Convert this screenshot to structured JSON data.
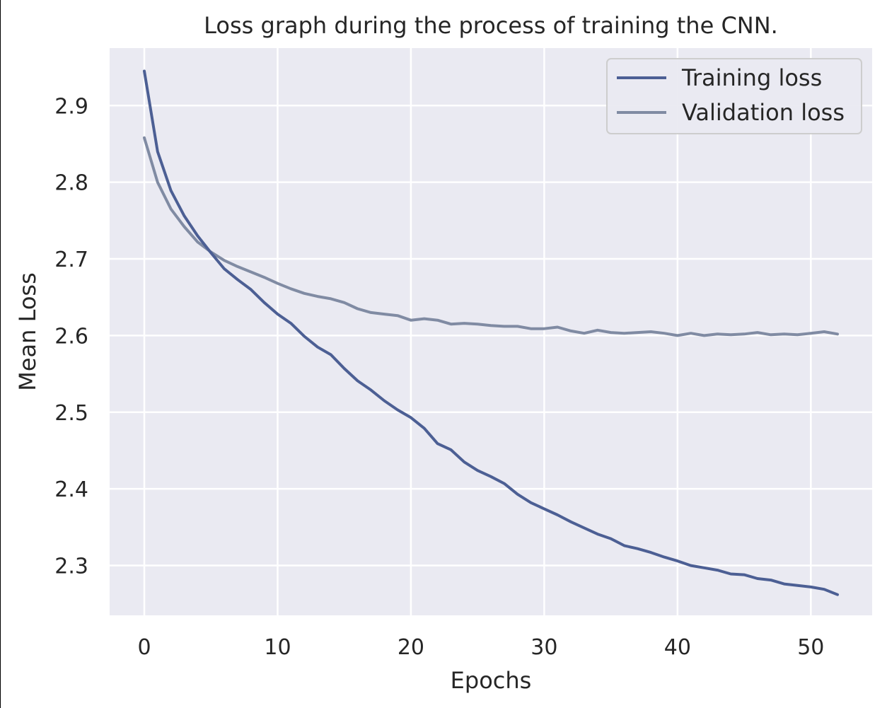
{
  "chart_data": {
    "type": "line",
    "title": "Loss graph during the process of training the CNN.",
    "xlabel": "Epochs",
    "ylabel": "Mean Loss",
    "xlim": [
      -2.6,
      54.6
    ],
    "ylim": [
      2.235,
      2.975
    ],
    "xticks": [
      0,
      10,
      20,
      30,
      40,
      50
    ],
    "yticks": [
      2.3,
      2.4,
      2.5,
      2.6,
      2.7,
      2.8,
      2.9
    ],
    "grid": true,
    "legend_position": "top-right",
    "background_color": "#eaeaf2",
    "grid_color": "#ffffff",
    "x": [
      0,
      1,
      2,
      3,
      4,
      5,
      6,
      7,
      8,
      9,
      10,
      11,
      12,
      13,
      14,
      15,
      16,
      17,
      18,
      19,
      20,
      21,
      22,
      23,
      24,
      25,
      26,
      27,
      28,
      29,
      30,
      31,
      32,
      33,
      34,
      35,
      36,
      37,
      38,
      39,
      40,
      41,
      42,
      43,
      44,
      45,
      46,
      47,
      48,
      49,
      50,
      51,
      52
    ],
    "series": [
      {
        "name": "Training loss",
        "color": "#4c5f94",
        "values": [
          2.945,
          2.84,
          2.789,
          2.756,
          2.73,
          2.708,
          2.687,
          2.673,
          2.66,
          2.643,
          2.628,
          2.616,
          2.599,
          2.585,
          2.575,
          2.557,
          2.541,
          2.529,
          2.515,
          2.503,
          2.493,
          2.479,
          2.459,
          2.451,
          2.435,
          2.424,
          2.416,
          2.407,
          2.393,
          2.382,
          2.374,
          2.366,
          2.357,
          2.349,
          2.341,
          2.335,
          2.326,
          2.322,
          2.317,
          2.311,
          2.306,
          2.3,
          2.297,
          2.294,
          2.289,
          2.288,
          2.283,
          2.281,
          2.276,
          2.274,
          2.272,
          2.269,
          2.262
        ]
      },
      {
        "name": "Validation loss",
        "color": "#808ba3",
        "values": [
          2.858,
          2.8,
          2.765,
          2.742,
          2.722,
          2.709,
          2.698,
          2.69,
          2.683,
          2.676,
          2.668,
          2.661,
          2.655,
          2.651,
          2.648,
          2.643,
          2.635,
          2.63,
          2.628,
          2.626,
          2.62,
          2.622,
          2.62,
          2.615,
          2.616,
          2.615,
          2.613,
          2.612,
          2.612,
          2.609,
          2.609,
          2.611,
          2.606,
          2.603,
          2.607,
          2.604,
          2.603,
          2.604,
          2.605,
          2.603,
          2.6,
          2.603,
          2.6,
          2.602,
          2.601,
          2.602,
          2.604,
          2.601,
          2.602,
          2.601,
          2.603,
          2.605,
          2.602
        ]
      }
    ]
  }
}
